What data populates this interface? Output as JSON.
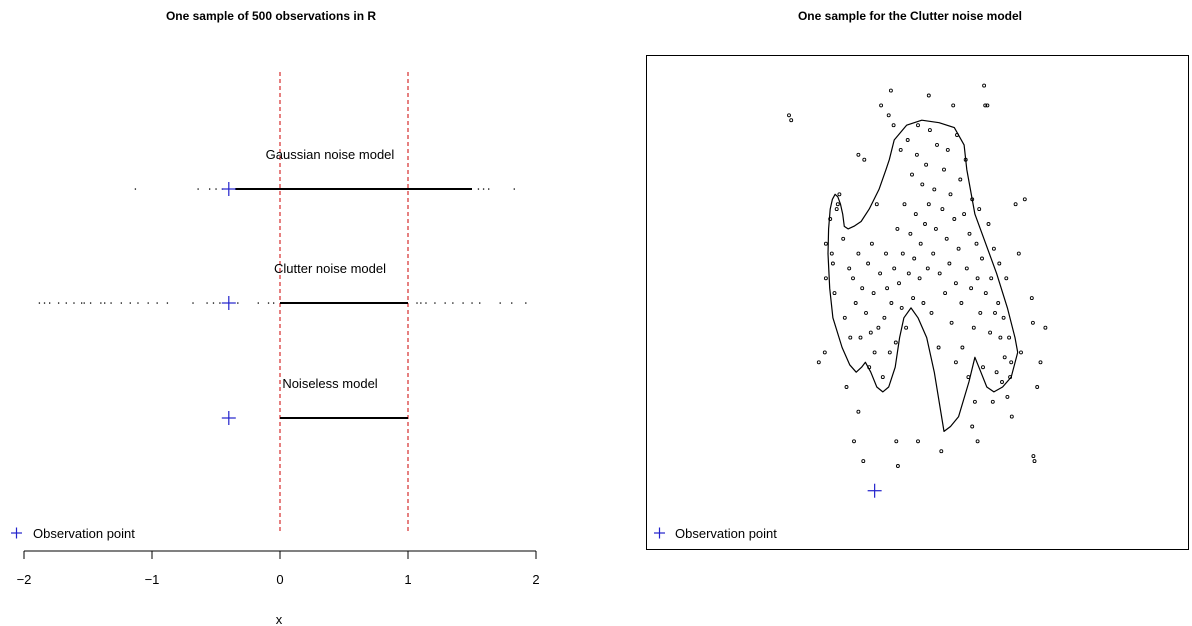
{
  "colors": {
    "observation": "#2222cc",
    "reference_lines": "#cc0000",
    "points": "#000000"
  },
  "legend": {
    "icon": "plus-icon",
    "label": "Observation point"
  },
  "chart_data": [
    {
      "type": "scatter",
      "title": "One sample of  500 observations in R",
      "xlabel": "x",
      "ylabel": "",
      "xlim": [
        -2,
        2
      ],
      "x_ticks": [
        -2,
        -1,
        0,
        1,
        2
      ],
      "x_tick_labels": [
        "−2",
        "−1",
        "0",
        "1",
        "2"
      ],
      "reference_lines_x": [
        0,
        1
      ],
      "observation_point_x": -0.4,
      "legend_position": "bottom-left",
      "grid": false,
      "rows": [
        {
          "name": "Gaussian noise model",
          "outliers": [
            -1.13,
            -0.64,
            -0.55,
            -0.5,
            -0.45,
            1.55,
            1.59,
            1.63,
            1.83
          ],
          "dense_range": [
            -0.35,
            1.5
          ]
        },
        {
          "name": "Clutter noise model",
          "outliers": [
            -1.88,
            -1.84,
            -1.8,
            -1.73,
            -1.67,
            -1.61,
            -1.55,
            -1.53,
            -1.48,
            -1.4,
            -1.37,
            -1.32,
            -1.24,
            -1.17,
            -1.11,
            -1.03,
            -0.96,
            -0.88,
            -0.68,
            -0.57,
            -0.52,
            -0.47,
            -0.33,
            -0.17,
            -0.09,
            -0.05,
            1.07,
            1.1,
            1.14,
            1.21,
            1.29,
            1.35,
            1.43,
            1.5,
            1.56,
            1.72,
            1.81,
            1.92
          ],
          "dense_range": [
            0,
            1
          ]
        },
        {
          "name": "Noiseless model",
          "outliers": [],
          "dense_range": [
            0,
            1
          ]
        }
      ]
    },
    {
      "type": "scatter",
      "title": "One sample for the Clutter noise model",
      "xlabel": "",
      "ylabel": "",
      "grid": false,
      "legend_position": "bottom-left",
      "observation_point": [
        0.42,
        0.12
      ],
      "boundary": [
        [
          0.343,
          0.47
        ],
        [
          0.337,
          0.53
        ],
        [
          0.334,
          0.6
        ],
        [
          0.335,
          0.65
        ],
        [
          0.338,
          0.69
        ],
        [
          0.342,
          0.71
        ],
        [
          0.347,
          0.72
        ],
        [
          0.352,
          0.715
        ],
        [
          0.357,
          0.7
        ],
        [
          0.361,
          0.68
        ],
        [
          0.364,
          0.655
        ],
        [
          0.371,
          0.65
        ],
        [
          0.383,
          0.656
        ],
        [
          0.395,
          0.665
        ],
        [
          0.41,
          0.69
        ],
        [
          0.428,
          0.73
        ],
        [
          0.441,
          0.77
        ],
        [
          0.447,
          0.79
        ],
        [
          0.456,
          0.83
        ],
        [
          0.479,
          0.86
        ],
        [
          0.507,
          0.87
        ],
        [
          0.539,
          0.865
        ],
        [
          0.567,
          0.855
        ],
        [
          0.585,
          0.82
        ],
        [
          0.59,
          0.77
        ],
        [
          0.605,
          0.68
        ],
        [
          0.645,
          0.56
        ],
        [
          0.665,
          0.49
        ],
        [
          0.679,
          0.43
        ],
        [
          0.684,
          0.4
        ],
        [
          0.672,
          0.35
        ],
        [
          0.656,
          0.33
        ],
        [
          0.64,
          0.32
        ],
        [
          0.627,
          0.33
        ],
        [
          0.616,
          0.36
        ],
        [
          0.605,
          0.39
        ],
        [
          0.594,
          0.34
        ],
        [
          0.575,
          0.27
        ],
        [
          0.56,
          0.25
        ],
        [
          0.548,
          0.24
        ],
        [
          0.545,
          0.26
        ],
        [
          0.53,
          0.36
        ],
        [
          0.516,
          0.43
        ],
        [
          0.5,
          0.47
        ],
        [
          0.487,
          0.49
        ],
        [
          0.474,
          0.47
        ],
        [
          0.466,
          0.43
        ],
        [
          0.458,
          0.37
        ],
        [
          0.446,
          0.33
        ],
        [
          0.435,
          0.32
        ],
        [
          0.424,
          0.33
        ],
        [
          0.413,
          0.36
        ],
        [
          0.403,
          0.38
        ],
        [
          0.396,
          0.37
        ],
        [
          0.386,
          0.36
        ],
        [
          0.374,
          0.375
        ],
        [
          0.36,
          0.41
        ],
        [
          0.343,
          0.47
        ]
      ],
      "points": [
        [
          0.262,
          0.88
        ],
        [
          0.266,
          0.87
        ],
        [
          0.317,
          0.38
        ],
        [
          0.328,
          0.4
        ],
        [
          0.33,
          0.55
        ],
        [
          0.33,
          0.62
        ],
        [
          0.338,
          0.67
        ],
        [
          0.341,
          0.6
        ],
        [
          0.343,
          0.58
        ],
        [
          0.346,
          0.52
        ],
        [
          0.35,
          0.69
        ],
        [
          0.352,
          0.7
        ],
        [
          0.355,
          0.72
        ],
        [
          0.362,
          0.63
        ],
        [
          0.365,
          0.47
        ],
        [
          0.368,
          0.33
        ],
        [
          0.373,
          0.57
        ],
        [
          0.375,
          0.43
        ],
        [
          0.38,
          0.55
        ],
        [
          0.382,
          0.22
        ],
        [
          0.385,
          0.5
        ],
        [
          0.39,
          0.6
        ],
        [
          0.394,
          0.43
        ],
        [
          0.397,
          0.53
        ],
        [
          0.399,
          0.18
        ],
        [
          0.401,
          0.79
        ],
        [
          0.404,
          0.48
        ],
        [
          0.408,
          0.58
        ],
        [
          0.41,
          0.37
        ],
        [
          0.413,
          0.44
        ],
        [
          0.415,
          0.62
        ],
        [
          0.418,
          0.52
        ],
        [
          0.42,
          0.4
        ],
        [
          0.424,
          0.7
        ],
        [
          0.427,
          0.45
        ],
        [
          0.43,
          0.56
        ],
        [
          0.432,
          0.9
        ],
        [
          0.435,
          0.35
        ],
        [
          0.438,
          0.47
        ],
        [
          0.441,
          0.6
        ],
        [
          0.443,
          0.53
        ],
        [
          0.446,
          0.88
        ],
        [
          0.448,
          0.4
        ],
        [
          0.451,
          0.5
        ],
        [
          0.455,
          0.86
        ],
        [
          0.456,
          0.57
        ],
        [
          0.459,
          0.42
        ],
        [
          0.462,
          0.65
        ],
        [
          0.463,
          0.17
        ],
        [
          0.465,
          0.54
        ],
        [
          0.468,
          0.81
        ],
        [
          0.47,
          0.49
        ],
        [
          0.472,
          0.6
        ],
        [
          0.475,
          0.7
        ],
        [
          0.478,
          0.45
        ],
        [
          0.481,
          0.83
        ],
        [
          0.483,
          0.56
        ],
        [
          0.486,
          0.64
        ],
        [
          0.489,
          0.76
        ],
        [
          0.491,
          0.51
        ],
        [
          0.493,
          0.59
        ],
        [
          0.496,
          0.68
        ],
        [
          0.498,
          0.8
        ],
        [
          0.5,
          0.86
        ],
        [
          0.503,
          0.55
        ],
        [
          0.505,
          0.62
        ],
        [
          0.508,
          0.74
        ],
        [
          0.51,
          0.5
        ],
        [
          0.513,
          0.66
        ],
        [
          0.515,
          0.78
        ],
        [
          0.518,
          0.57
        ],
        [
          0.52,
          0.7
        ],
        [
          0.522,
          0.85
        ],
        [
          0.525,
          0.48
        ],
        [
          0.528,
          0.6
        ],
        [
          0.53,
          0.73
        ],
        [
          0.533,
          0.65
        ],
        [
          0.535,
          0.82
        ],
        [
          0.538,
          0.41
        ],
        [
          0.54,
          0.56
        ],
        [
          0.543,
          0.2
        ],
        [
          0.545,
          0.69
        ],
        [
          0.548,
          0.77
        ],
        [
          0.55,
          0.52
        ],
        [
          0.553,
          0.63
        ],
        [
          0.555,
          0.81
        ],
        [
          0.558,
          0.58
        ],
        [
          0.56,
          0.72
        ],
        [
          0.562,
          0.46
        ],
        [
          0.565,
          0.9
        ],
        [
          0.567,
          0.67
        ],
        [
          0.57,
          0.54
        ],
        [
          0.572,
          0.84
        ],
        [
          0.575,
          0.61
        ],
        [
          0.578,
          0.75
        ],
        [
          0.58,
          0.5
        ],
        [
          0.582,
          0.41
        ],
        [
          0.585,
          0.68
        ],
        [
          0.588,
          0.79
        ],
        [
          0.59,
          0.57
        ],
        [
          0.593,
          0.35
        ],
        [
          0.595,
          0.64
        ],
        [
          0.598,
          0.53
        ],
        [
          0.6,
          0.71
        ],
        [
          0.603,
          0.45
        ],
        [
          0.605,
          0.3
        ],
        [
          0.608,
          0.62
        ],
        [
          0.61,
          0.55
        ],
        [
          0.613,
          0.69
        ],
        [
          0.615,
          0.48
        ],
        [
          0.618,
          0.59
        ],
        [
          0.62,
          0.37
        ],
        [
          0.622,
          0.94
        ],
        [
          0.624,
          0.9
        ],
        [
          0.625,
          0.52
        ],
        [
          0.628,
          0.9
        ],
        [
          0.63,
          0.66
        ],
        [
          0.633,
          0.44
        ],
        [
          0.635,
          0.55
        ],
        [
          0.638,
          0.3
        ],
        [
          0.64,
          0.61
        ],
        [
          0.642,
          0.48
        ],
        [
          0.645,
          0.36
        ],
        [
          0.648,
          0.5
        ],
        [
          0.65,
          0.58
        ],
        [
          0.652,
          0.43
        ],
        [
          0.655,
          0.34
        ],
        [
          0.658,
          0.47
        ],
        [
          0.66,
          0.39
        ],
        [
          0.663,
          0.55
        ],
        [
          0.665,
          0.31
        ],
        [
          0.668,
          0.43
        ],
        [
          0.67,
          0.35
        ],
        [
          0.672,
          0.38
        ],
        [
          0.673,
          0.27
        ],
        [
          0.68,
          0.7
        ],
        [
          0.686,
          0.6
        ],
        [
          0.69,
          0.4
        ],
        [
          0.697,
          0.71
        ],
        [
          0.71,
          0.51
        ],
        [
          0.712,
          0.46
        ],
        [
          0.713,
          0.19
        ],
        [
          0.715,
          0.18
        ],
        [
          0.72,
          0.33
        ],
        [
          0.726,
          0.38
        ],
        [
          0.735,
          0.45
        ],
        [
          0.39,
          0.8
        ],
        [
          0.52,
          0.92
        ],
        [
          0.45,
          0.93
        ],
        [
          0.61,
          0.22
        ],
        [
          0.5,
          0.22
        ],
        [
          0.39,
          0.28
        ],
        [
          0.46,
          0.22
        ],
        [
          0.57,
          0.38
        ],
        [
          0.6,
          0.25
        ]
      ]
    }
  ]
}
